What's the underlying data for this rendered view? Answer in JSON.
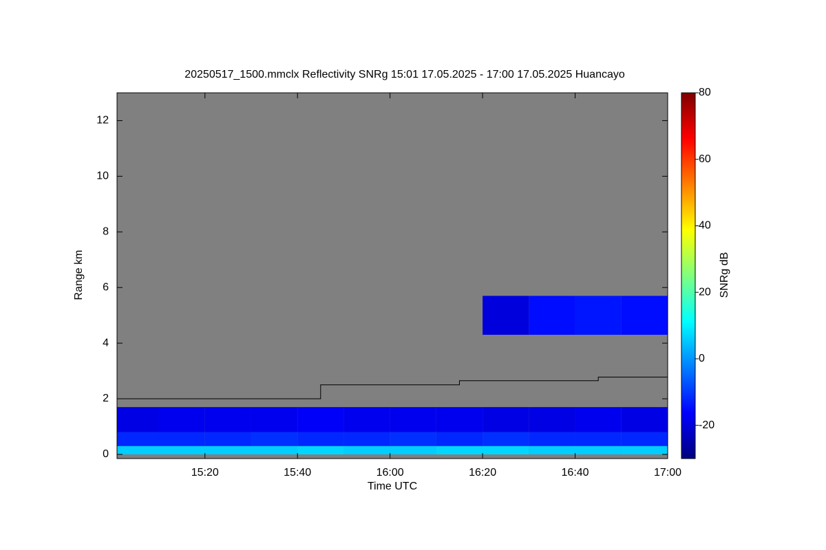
{
  "chart_data": {
    "type": "heatmap",
    "title": "20250517_1500.mmclx Reflectivity SNRg   15:01 17.05.2025 - 17:00 17.05.2025 Huancayo",
    "x_label": "Time UTC",
    "y_label": "Range km",
    "xlim": [
      901,
      1020
    ],
    "xticks": [
      {
        "value": 920,
        "label": "15:20"
      },
      {
        "value": 940,
        "label": "15:40"
      },
      {
        "value": 960,
        "label": "16:00"
      },
      {
        "value": 980,
        "label": "16:20"
      },
      {
        "value": 1000,
        "label": "16:40"
      },
      {
        "value": 1020,
        "label": "17:00"
      }
    ],
    "ylim": [
      -0.15,
      13
    ],
    "yticks": [
      0,
      2,
      4,
      6,
      8,
      10,
      12
    ],
    "x_bins": [
      901,
      910,
      920,
      930,
      940,
      950,
      960,
      970,
      980,
      990,
      1000,
      1010,
      1020
    ],
    "y_bins": [
      0,
      0.3,
      0.8,
      1.7,
      4.3,
      5.7,
      13
    ],
    "values": [
      [
        6,
        6,
        6,
        6,
        7,
        6,
        6,
        7,
        7,
        6,
        6,
        6
      ],
      [
        -12,
        -12,
        -12,
        -11,
        -12,
        -12,
        -11,
        -12,
        -11,
        -12,
        -12,
        -12
      ],
      [
        -19,
        -18,
        -18,
        -18,
        -17,
        -18,
        -18,
        -18,
        -19,
        -19,
        -18,
        -19
      ],
      [
        null,
        null,
        null,
        null,
        null,
        null,
        null,
        null,
        null,
        null,
        null,
        null
      ],
      [
        null,
        null,
        null,
        null,
        null,
        null,
        null,
        null,
        -20,
        -15,
        -14,
        -15
      ],
      [
        null,
        null,
        null,
        null,
        null,
        null,
        null,
        null,
        null,
        null,
        null,
        null
      ]
    ],
    "missing_color": "#808080",
    "line": {
      "color": "#000000",
      "x": [
        901,
        945,
        945,
        975,
        975,
        1005,
        1005,
        1020
      ],
      "values": [
        2,
        2,
        2.5,
        2.5,
        2.65,
        2.65,
        2.78,
        2.78
      ]
    },
    "colorbar": {
      "label": "SNRg dB",
      "lim": [
        -30,
        80
      ],
      "ticks": [
        -20,
        0,
        20,
        40,
        60,
        80
      ],
      "colormap": [
        "#00007f",
        "#0000ff",
        "#007fff",
        "#00ffff",
        "#7fff7f",
        "#ffff00",
        "#ff7f00",
        "#ff0000",
        "#7f0000"
      ]
    }
  }
}
